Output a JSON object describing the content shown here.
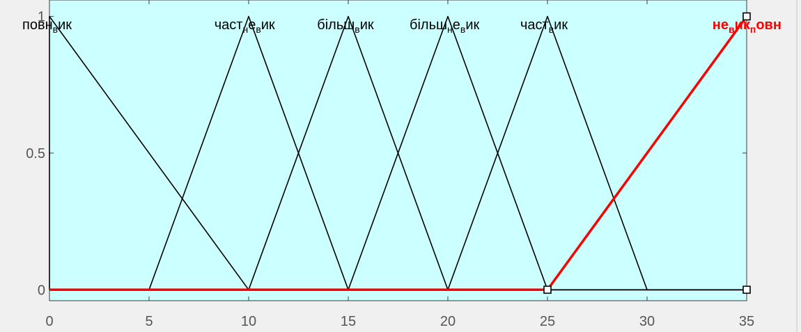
{
  "chart_data": {
    "type": "line",
    "title": "",
    "xlabel": "",
    "ylabel": "",
    "xlim": [
      0,
      35
    ],
    "ylim": [
      -0.04,
      1.06
    ],
    "x_ticks": [
      {
        "value": 0,
        "label": "0"
      },
      {
        "value": 5,
        "label": "5"
      },
      {
        "value": 10,
        "label": "10"
      },
      {
        "value": 15,
        "label": "15"
      },
      {
        "value": 20,
        "label": "20"
      },
      {
        "value": 25,
        "label": "25"
      },
      {
        "value": 30,
        "label": "30"
      },
      {
        "value": 35,
        "label": "35"
      }
    ],
    "y_ticks": [
      {
        "value": 0,
        "label": "0"
      },
      {
        "value": 0.5,
        "label": "0.5"
      },
      {
        "value": 1,
        "label": "1"
      }
    ],
    "colors": {
      "plot_background": "#ccffff",
      "figure_background": "#f0f0f0",
      "default_series": "#000000",
      "highlight_series": "#ff0000"
    },
    "series": [
      {
        "label": [
          {
            "t": "повн"
          },
          {
            "t": "в",
            "sub": true
          },
          {
            "t": "ик"
          }
        ],
        "color": "#000000",
        "highlight": false,
        "x": [
          0,
          0,
          10,
          35
        ],
        "y": [
          0,
          1,
          0,
          0
        ]
      },
      {
        "label": [
          {
            "t": "част"
          },
          {
            "t": "н",
            "sub": true
          },
          {
            "t": "е"
          },
          {
            "t": "в",
            "sub": true
          },
          {
            "t": "ик"
          }
        ],
        "color": "#000000",
        "highlight": false,
        "x": [
          0,
          5,
          10,
          15,
          35
        ],
        "y": [
          0,
          0,
          1,
          0,
          0
        ]
      },
      {
        "label": [
          {
            "t": "більш"
          },
          {
            "t": "в",
            "sub": true
          },
          {
            "t": "ик"
          }
        ],
        "color": "#000000",
        "highlight": false,
        "x": [
          0,
          10,
          15,
          20,
          35
        ],
        "y": [
          0,
          0,
          1,
          0,
          0
        ]
      },
      {
        "label": [
          {
            "t": "більш"
          },
          {
            "t": "н",
            "sub": true
          },
          {
            "t": "е"
          },
          {
            "t": "в",
            "sub": true
          },
          {
            "t": "ик"
          }
        ],
        "color": "#000000",
        "highlight": false,
        "x": [
          0,
          15,
          20,
          25,
          35
        ],
        "y": [
          0,
          0,
          1,
          0,
          0
        ]
      },
      {
        "label": [
          {
            "t": "част"
          },
          {
            "t": "в",
            "sub": true
          },
          {
            "t": "ик"
          }
        ],
        "color": "#000000",
        "highlight": false,
        "x": [
          0,
          20,
          25,
          30,
          35
        ],
        "y": [
          0,
          0,
          1,
          0,
          0
        ]
      },
      {
        "label": [
          {
            "t": "не"
          },
          {
            "t": "в",
            "sub": true
          },
          {
            "t": "ик"
          },
          {
            "t": "п",
            "sub": true
          },
          {
            "t": "овн"
          }
        ],
        "color": "#ff0000",
        "highlight": true,
        "x": [
          0,
          25,
          35
        ],
        "y": [
          0,
          0,
          1
        ],
        "handles": [
          {
            "x": 25,
            "y": 0
          },
          {
            "x": 35,
            "y": 1
          }
        ]
      }
    ],
    "extra_handles": [
      {
        "x": 35,
        "y": 0
      }
    ]
  }
}
